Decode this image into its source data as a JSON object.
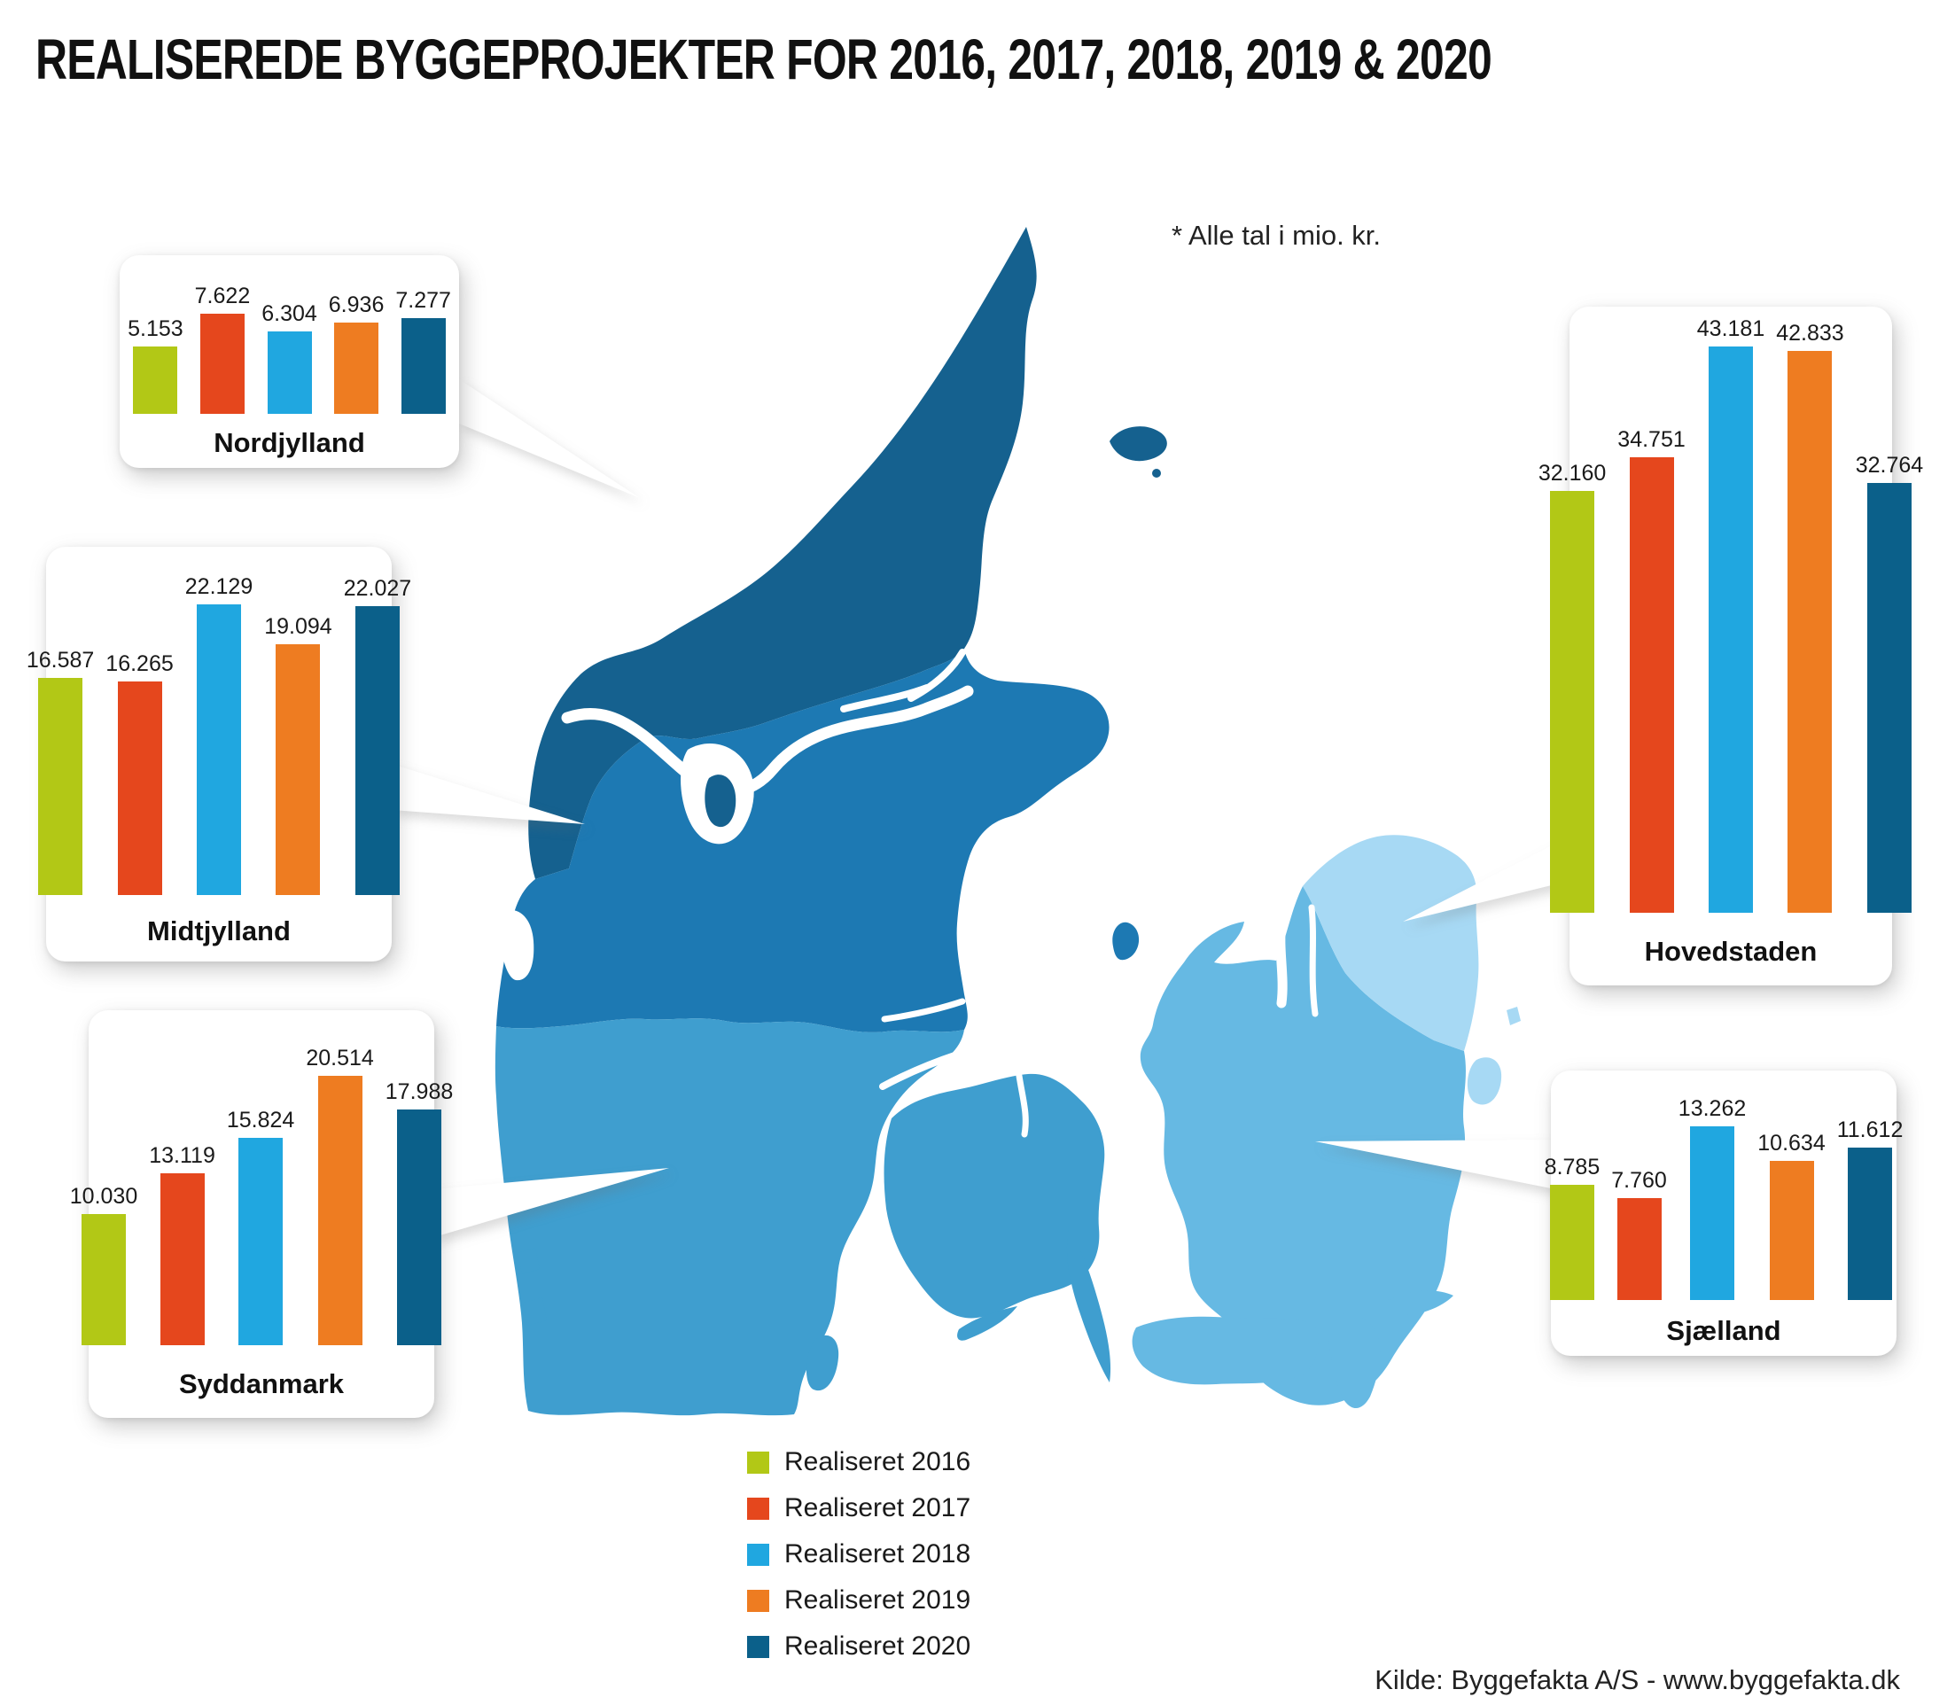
{
  "title": "REALISEREDE BYGGEPROJEKTER FOR 2016, 2017, 2018, 2019 & 2020",
  "note": "* Alle tal i mio. kr.",
  "source": "Kilde: Byggefakta A/S - www.byggefakta.dk",
  "legend": {
    "items": [
      {
        "label": "Realiseret 2016",
        "color": "#b2c816"
      },
      {
        "label": "Realiseret 2017",
        "color": "#e5471d"
      },
      {
        "label": "Realiseret 2018",
        "color": "#20a7e0"
      },
      {
        "label": "Realiseret 2019",
        "color": "#ee7c21"
      },
      {
        "label": "Realiseret 2020",
        "color": "#0b608a"
      }
    ]
  },
  "map": {
    "country": "Danmark",
    "regions": {
      "nordjylland": {
        "name": "Nordjylland",
        "color": "#15618f"
      },
      "midtjylland": {
        "name": "Midtjylland",
        "color": "#1d79b3"
      },
      "syddanmark": {
        "name": "Syddanmark",
        "color": "#3f9ecf"
      },
      "sjaelland": {
        "name": "Sjælland",
        "color": "#66b9e3"
      },
      "hovedstaden": {
        "name": "Hovedstaden",
        "color": "#a7d9f4"
      }
    }
  },
  "chart_data": {
    "type": "bar",
    "unit": "mio. kr.",
    "series_labels": [
      "Realiseret 2016",
      "Realiseret 2017",
      "Realiseret 2018",
      "Realiseret 2019",
      "Realiseret 2020"
    ],
    "series_colors": [
      "#b2c816",
      "#e5471d",
      "#20a7e0",
      "#ee7c21",
      "#0b608a"
    ],
    "regions": [
      {
        "id": "nordjylland",
        "name": "Nordjylland",
        "values": [
          5153,
          7622,
          6304,
          6936,
          7277
        ],
        "labels": [
          "5.153",
          "7.622",
          "6.304",
          "6.936",
          "7.277"
        ]
      },
      {
        "id": "midtjylland",
        "name": "Midtjylland",
        "values": [
          16587,
          16265,
          22129,
          19094,
          22027
        ],
        "labels": [
          "16.587",
          "16.265",
          "22.129",
          "19.094",
          "22.027"
        ]
      },
      {
        "id": "syddanmark",
        "name": "Syddanmark",
        "values": [
          10030,
          13119,
          15824,
          20514,
          17988
        ],
        "labels": [
          "10.030",
          "13.119",
          "15.824",
          "20.514",
          "17.988"
        ]
      },
      {
        "id": "hovedstaden",
        "name": "Hovedstaden",
        "values": [
          32160,
          34751,
          43181,
          42833,
          32764
        ],
        "labels": [
          "32.160",
          "34.751",
          "43.181",
          "42.833",
          "32.764"
        ]
      },
      {
        "id": "sjaelland",
        "name": "Sjælland",
        "values": [
          8785,
          7760,
          13262,
          10634,
          11612
        ],
        "labels": [
          "8.785",
          "7.760",
          "13.262",
          "10.634",
          "11.612"
        ]
      }
    ]
  }
}
